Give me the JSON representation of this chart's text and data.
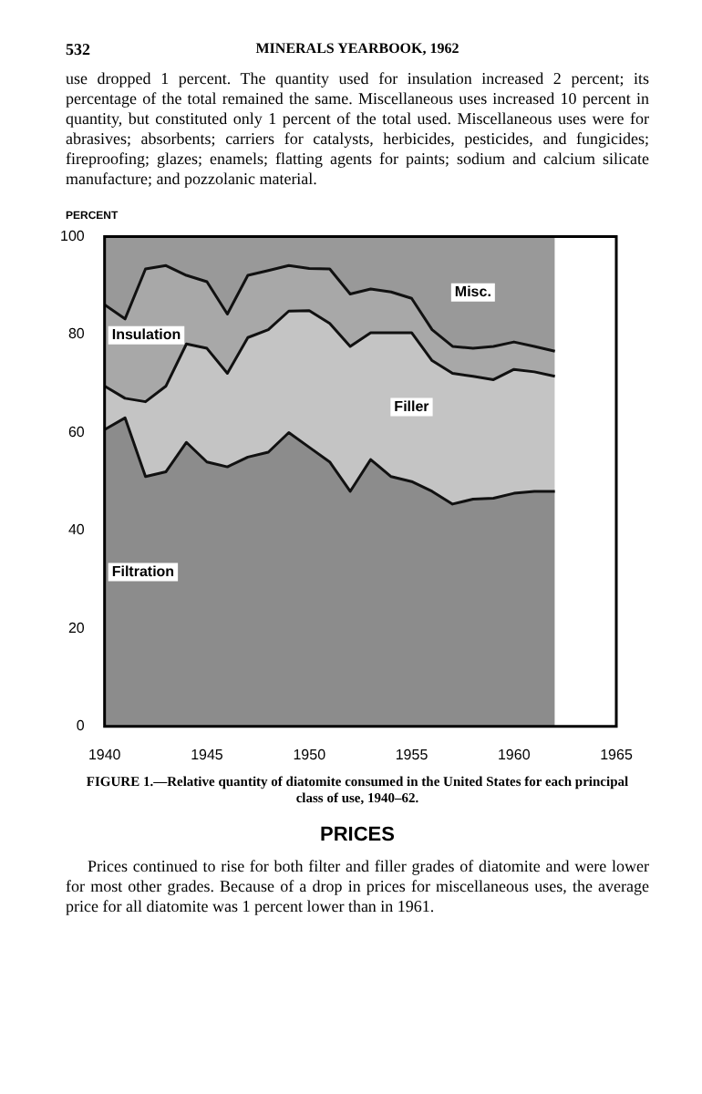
{
  "chart_data": {
    "type": "area",
    "title": "FIGURE 1.—Relative quantity of diatomite consumed in the United States for each principal class of use, 1940–62.",
    "ylabel": "PERCENT",
    "annotations": [
      "532",
      "MINERALS YEARBOOK, 1962",
      "use dropped 1 percent. The quantity used for insulation increased 2 percent; its percentage of the total remained the same. Miscellaneous uses increased 10 percent in quantity, but constituted only 1 percent of the total used. Miscellaneous uses were for abrasives; absorbents; carriers for catalysts, herbicides, pesticides, and fungicides; fireproofing; glazes; enamels; flatting agents for paints; sodium and calcium silicate manufacture; and pozzolanic material.",
      "PRICES",
      "Prices continued to rise for both filter and filler grades of diatomite and were lower for most other grades. Because of a drop in prices for miscellaneous uses, the average price for all diatomite was 1 percent lower than in 1961."
    ],
    "x": [
      1940,
      1941,
      1942,
      1943,
      1944,
      1945,
      1946,
      1947,
      1948,
      1949,
      1950,
      1951,
      1952,
      1953,
      1954,
      1955,
      1956,
      1957,
      1958,
      1959,
      1960,
      1961,
      1962
    ],
    "stacked": true,
    "series": [
      {
        "name": "Filtration",
        "color": "#8c8c8c",
        "values": [
          60.6,
          63,
          51,
          52,
          58,
          54,
          53,
          55,
          56,
          60,
          57,
          54,
          48,
          54.5,
          51,
          50,
          48,
          45.4,
          46.4,
          46.6,
          47.6,
          48,
          48
        ]
      },
      {
        "name": "Filler",
        "color": "#c4c4c4",
        "values": [
          8.9,
          4,
          15.3,
          17.5,
          20.1,
          23.2,
          19.1,
          24.4,
          25,
          24.8,
          27.9,
          28.3,
          29.6,
          25.9,
          29.4,
          30.4,
          26.7,
          26.7,
          25.1,
          24.2,
          25.3,
          24.4,
          23.5
        ]
      },
      {
        "name": "Insulation",
        "color": "#a8a8a8",
        "values": [
          16.6,
          16.2,
          27.1,
          24.6,
          14,
          13.6,
          12.1,
          12.7,
          12.1,
          9.3,
          8.6,
          11.1,
          10.7,
          8.9,
          8.3,
          7,
          6.3,
          5.5,
          5.7,
          6.8,
          5.6,
          5.2,
          5.1
        ]
      },
      {
        "name": "Misc.",
        "color": "#999999",
        "values": [
          13.9,
          16.8,
          6.6,
          5.9,
          7.9,
          9.2,
          15.8,
          7.9,
          6.9,
          5.9,
          6.5,
          6.6,
          11.7,
          10.7,
          11.3,
          12.6,
          19,
          22.4,
          22.8,
          22.4,
          21.5,
          22.4,
          23.4
        ]
      }
    ],
    "xlim": [
      1940,
      1965
    ],
    "xticks": [
      1940,
      1945,
      1950,
      1955,
      1960,
      1965
    ],
    "ylim": [
      0,
      100
    ],
    "yticks": [
      0,
      20,
      40,
      60,
      80,
      100
    ],
    "grid": false,
    "legend": false,
    "marker": "none",
    "line_style": "solid"
  }
}
